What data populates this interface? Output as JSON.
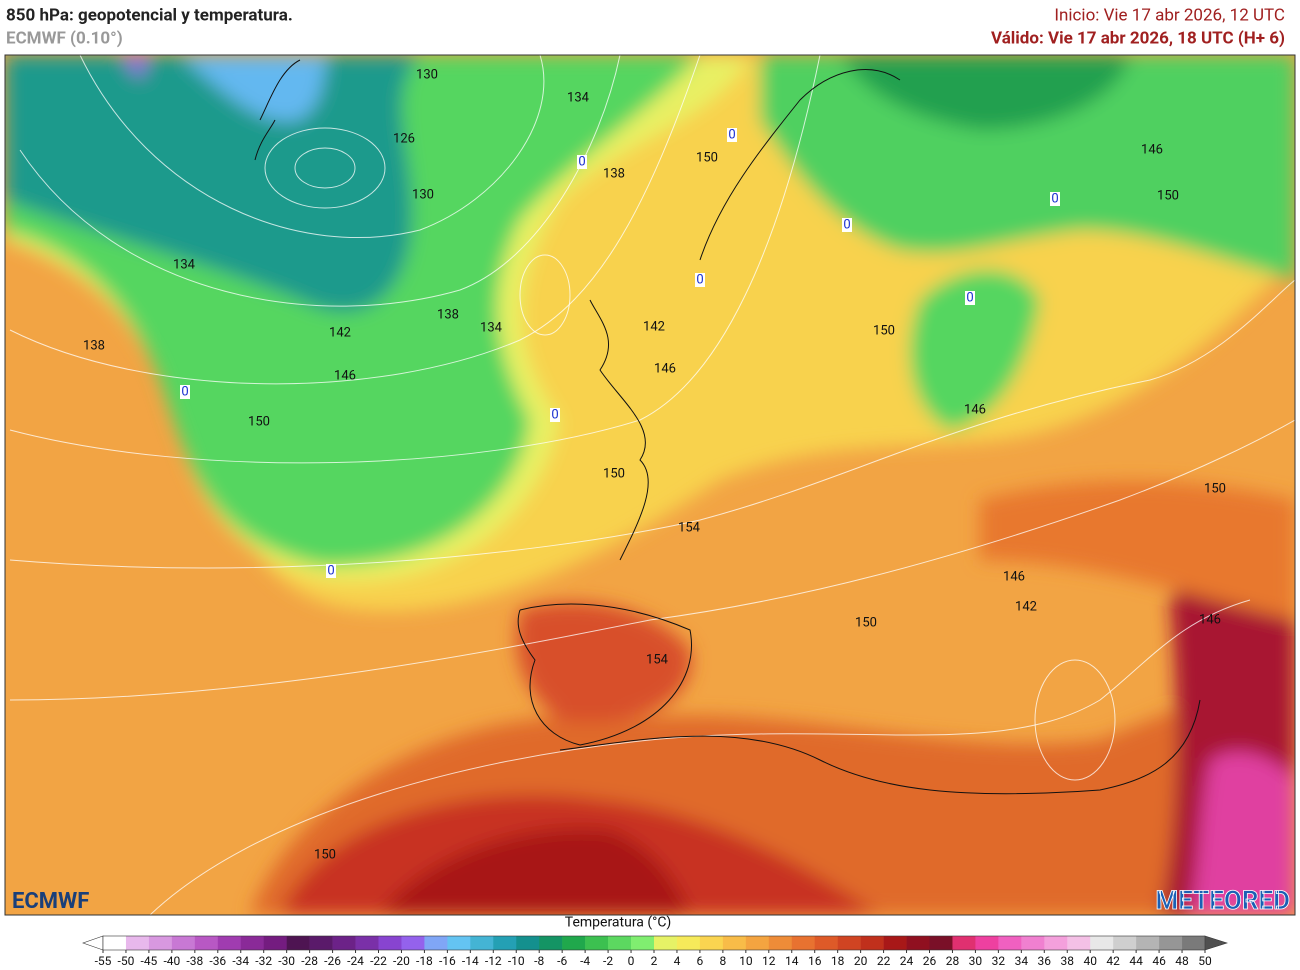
{
  "header": {
    "title": "850 hPa: geopotencial y temperatura.",
    "model": "ECMWF (0.10°)",
    "init": "Inicio: Vie 17 abr 2026, 12 UTC",
    "valid": "Válido: Vie 17 abr 2026, 18 UTC (H+ 6)"
  },
  "map": {
    "contour_labels": [
      130,
      134,
      126,
      0,
      150,
      0,
      138,
      130,
      146,
      150,
      0,
      0,
      134,
      0,
      0,
      138,
      134,
      142,
      142,
      138,
      150,
      146,
      146,
      0,
      0,
      146,
      150,
      150,
      150,
      154,
      0,
      146,
      142,
      146,
      150,
      154,
      150
    ],
    "logo_left": "ECMWF",
    "logo_right": "METEORED"
  },
  "colorbar": {
    "title": "Temperatura (°C)",
    "ticks": [
      -55,
      -50,
      -45,
      -40,
      -38,
      -36,
      -34,
      -32,
      -30,
      -28,
      -26,
      -24,
      -22,
      -20,
      -18,
      -16,
      -14,
      -12,
      -10,
      -8,
      -6,
      -4,
      -2,
      0,
      2,
      4,
      6,
      8,
      10,
      12,
      14,
      16,
      18,
      20,
      22,
      24,
      26,
      28,
      30,
      32,
      34,
      36,
      38,
      40,
      42,
      44,
      46,
      48,
      50
    ],
    "colors": [
      "#ffffff",
      "#e8b8ec",
      "#d898e0",
      "#c878d4",
      "#b858c4",
      "#a03cb0",
      "#8a2a98",
      "#741c80",
      "#4e1452",
      "#5a1a6a",
      "#6c2288",
      "#7a30a8",
      "#8844d0",
      "#9462ec",
      "#80a6f6",
      "#64c4f2",
      "#44b4d4",
      "#24a0b4",
      "#14908e",
      "#149464",
      "#20a84c",
      "#3cc050",
      "#5cd860",
      "#80ee70",
      "#e6f266",
      "#f6ea5a",
      "#fad450",
      "#f8bc48",
      "#f4a440",
      "#ee8c38",
      "#e87230",
      "#de5a28",
      "#d04422",
      "#c0301c",
      "#a81818",
      "#901020",
      "#7a1028",
      "#e03070",
      "#ee40a0",
      "#f060c0",
      "#f080d0",
      "#f4a0dc",
      "#f4c0e6",
      "#e8e8e8",
      "#cfcfcf",
      "#b4b4b4",
      "#969696",
      "#7a7a7a"
    ],
    "under_color": "#ffffff",
    "over_color": "#505050"
  }
}
